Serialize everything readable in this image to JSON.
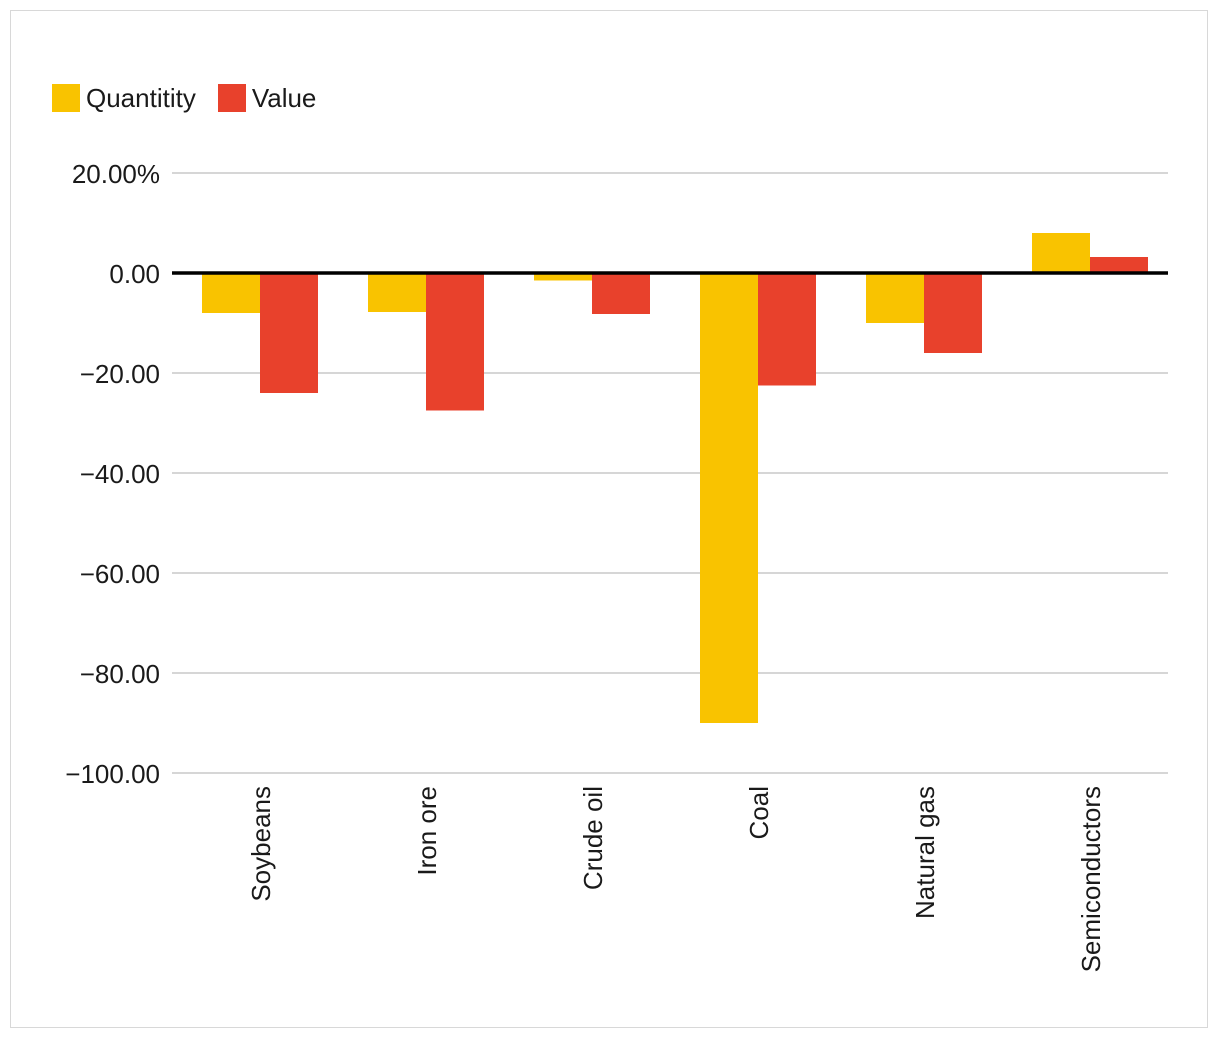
{
  "chart_data": {
    "type": "bar",
    "title": "",
    "xlabel": "",
    "ylabel": "",
    "categories": [
      "Soybeans",
      "Iron ore",
      "Crude oil",
      "Coal",
      "Natural gas",
      "Semiconductors"
    ],
    "series": [
      {
        "name": "Quantitity",
        "color": "#F9C300",
        "values": [
          -8,
          -7.8,
          -1.5,
          -90,
          -10,
          8
        ]
      },
      {
        "name": "Value",
        "color": "#E8412C",
        "values": [
          -24,
          -27.5,
          -8.2,
          -22.5,
          -16,
          3.2
        ]
      }
    ],
    "ylim": [
      -100,
      20
    ],
    "yticks": [
      20,
      0,
      -20,
      -40,
      -60,
      -80,
      -100
    ],
    "ytick_labels": [
      "20.00%",
      "0.00",
      "−20.00",
      "−40.00",
      "−60.00",
      "−80.00",
      "−100.00"
    ],
    "grid": true,
    "legend_position": "top-left",
    "zero_line_color": "#000000",
    "grid_color": "#c8c8c8"
  }
}
